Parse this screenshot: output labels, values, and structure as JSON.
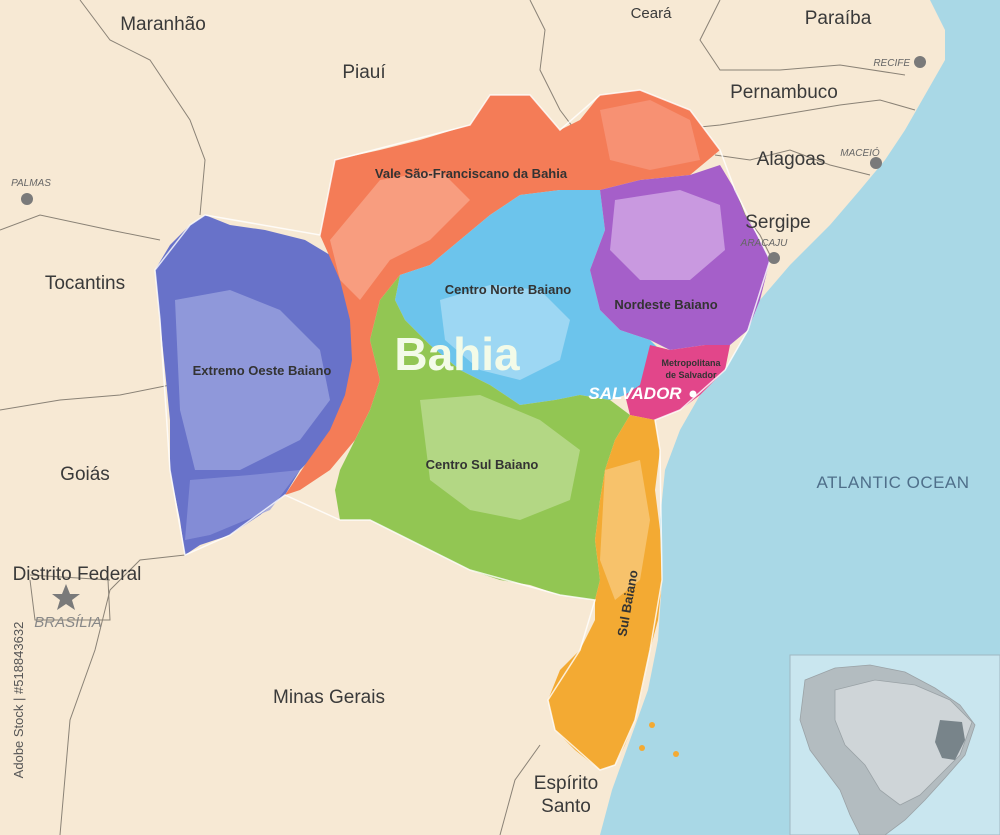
{
  "neighbor_states": {
    "maranhao": "Maranhão",
    "piaui": "Piauí",
    "ceara": "Ceará",
    "paraiba": "Paraíba",
    "pernambuco": "Pernambuco",
    "alagoas": "Alagoas",
    "sergipe": "Sergipe",
    "tocantins": "Tocantins",
    "goias": "Goiás",
    "distrito_federal": "Distrito Federal",
    "minas_gerais": "Minas Gerais",
    "espirito_santo_line1": "Espírito",
    "espirito_santo_line2": "Santo"
  },
  "cities": {
    "recife": "RECIFE",
    "maceio": "MACEIÓ",
    "aracaju": "ARACAJU",
    "palmas": "PALMAS",
    "brasilia": "BRASÍLIA"
  },
  "state_name": "Bahia",
  "capital": "SALVADOR",
  "ocean": "ATLANTIC OCEAN",
  "regions": {
    "vale": "Vale São-Franciscano da Bahia",
    "centro_norte": "Centro Norte Baiano",
    "nordeste": "Nordeste Baiano",
    "extremo_oeste": "Extremo Oeste Baiano",
    "metro_line1": "Metropolitana",
    "metro_line2": "de Salvador",
    "centro_sul": "Centro Sul Baiano",
    "sul": "Sul Baiano"
  },
  "watermark_id": "Adobe Stock | #518843632",
  "colors": {
    "land": "#f7e9d4",
    "ocean": "#a9d8e6",
    "vale": "#f47c57",
    "centro_norte": "#6cc4ec",
    "nordeste": "#a55fc9",
    "extremo_oeste": "#6872c9",
    "metropolitana": "#e2468a",
    "centro_sul": "#92c653",
    "sul": "#f3aa33"
  }
}
